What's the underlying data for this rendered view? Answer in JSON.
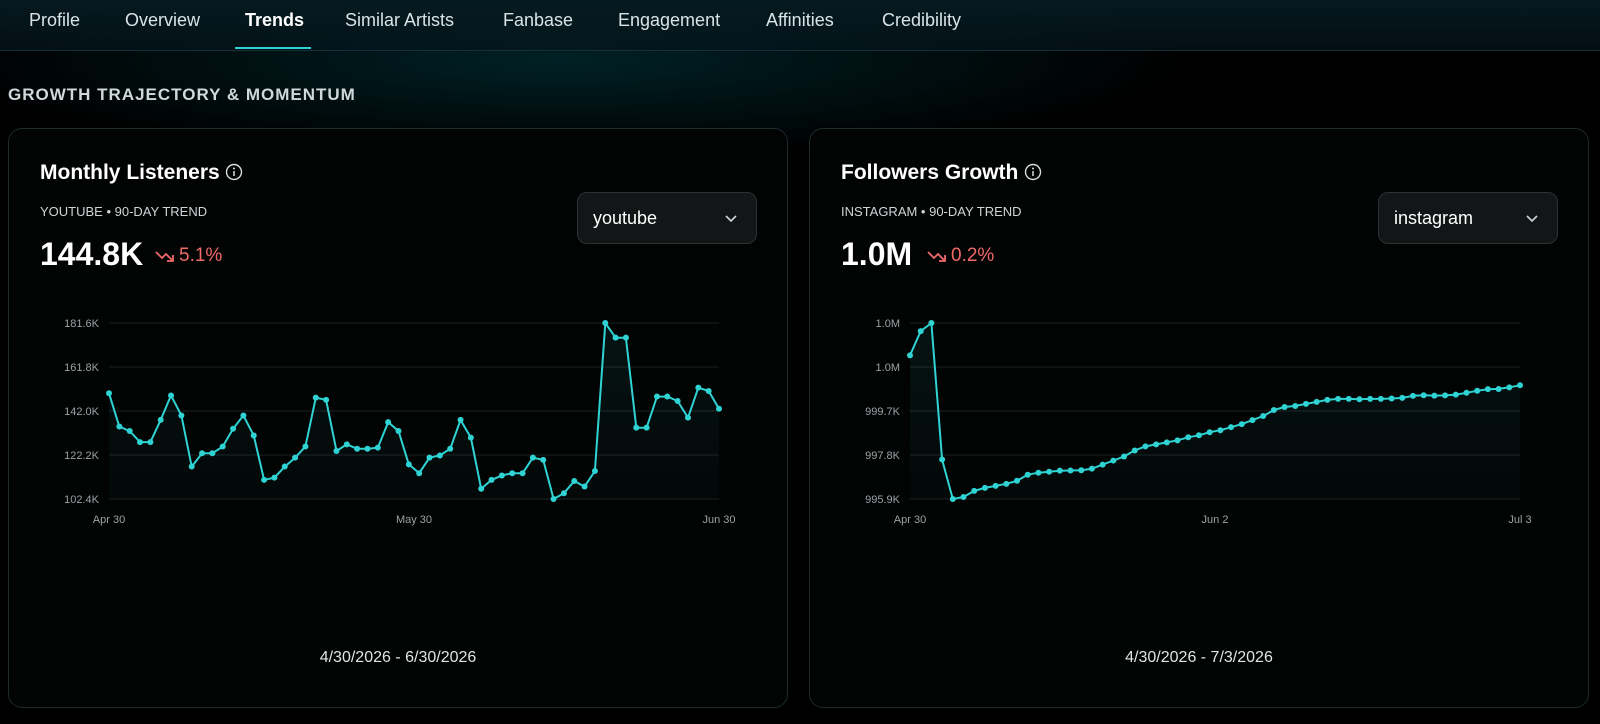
{
  "nav": {
    "tabs": [
      {
        "label": "Profile"
      },
      {
        "label": "Overview"
      },
      {
        "label": "Trends"
      },
      {
        "label": "Similar Artists"
      },
      {
        "label": "Fanbase"
      },
      {
        "label": "Engagement"
      },
      {
        "label": "Affinities"
      },
      {
        "label": "Credibility"
      }
    ],
    "active": "Trends"
  },
  "section_title": "GROWTH TRAJECTORY & MOMENTUM",
  "colors": {
    "accent": "#2fd3d3",
    "negative": "#f06a6a"
  },
  "cards": [
    {
      "title": "Monthly Listeners",
      "subtitle": "YOUTUBE • 90-DAY TREND",
      "value": "144.8K",
      "delta": "5.1%",
      "delta_direction": "down",
      "select_value": "youtube",
      "date_range": "4/30/2026 - 6/30/2026"
    },
    {
      "title": "Followers Growth",
      "subtitle": "INSTAGRAM • 90-DAY TREND",
      "value": "1.0M",
      "delta": "0.2%",
      "delta_direction": "down",
      "select_value": "instagram",
      "date_range": "4/30/2026 - 7/3/2026"
    }
  ],
  "chart_data": [
    {
      "type": "line",
      "series": [
        {
          "values": [
            150000,
            135000,
            133000,
            128000,
            128000,
            138000,
            149000,
            140000,
            117000,
            123000,
            123000,
            126000,
            134000,
            140000,
            131000,
            111000,
            112000,
            117000,
            121000,
            126000,
            148000,
            147000,
            124000,
            127000,
            125000,
            125000,
            125500,
            137000,
            133000,
            118000,
            114000,
            121000,
            122000,
            125000,
            138000,
            130000,
            107000,
            111000,
            113000,
            114000,
            114000,
            121000,
            120000,
            102400,
            105000,
            110500,
            108000,
            115000,
            181600,
            175000,
            175000,
            134500,
            134500,
            148500,
            148500,
            146500,
            139000,
            152500,
            151000,
            143000
          ]
        }
      ],
      "y_ticks": [
        "181.6K",
        "161.8K",
        "142.0K",
        "122.2K",
        "102.4K"
      ],
      "ylim": [
        102400,
        181600
      ],
      "x_ticks": [
        "Apr 30",
        "May 30",
        "Jun 30"
      ],
      "grid": true
    },
    {
      "type": "line",
      "series": [
        {
          "values": [
            1003000,
            1004200,
            1004600,
            997850,
            995900,
            996000,
            996300,
            996450,
            996550,
            996650,
            996800,
            997100,
            997200,
            997250,
            997300,
            997310,
            997320,
            997400,
            997600,
            997800,
            998000,
            998300,
            998500,
            998600,
            998700,
            998800,
            998950,
            999050,
            999200,
            999300,
            999450,
            999600,
            999800,
            1000000,
            1000300,
            1000450,
            1000500,
            1000600,
            1000700,
            1000800,
            1000850,
            1000850,
            1000830,
            1000850,
            1000850,
            1000870,
            1000900,
            1001000,
            1001030,
            1001010,
            1001020,
            1001060,
            1001150,
            1001250,
            1001330,
            1001340,
            1001420,
            1001520
          ]
        }
      ],
      "y_ticks": [
        "1.0M",
        "1.0M",
        "999.7K",
        "997.8K",
        "995.9K"
      ],
      "ylim": [
        995900,
        1004600
      ],
      "x_ticks": [
        "Apr 30",
        "Jun 2",
        "Jul 3"
      ],
      "grid": true
    }
  ]
}
